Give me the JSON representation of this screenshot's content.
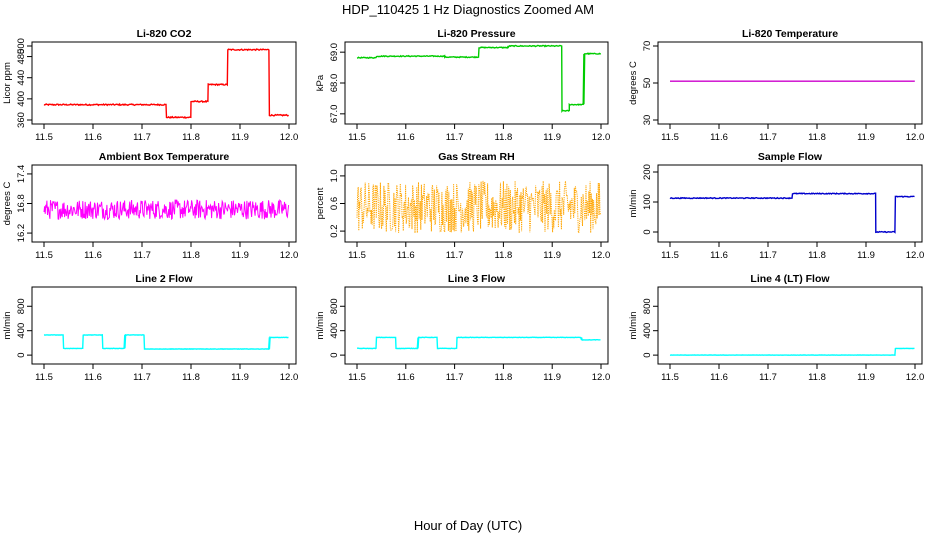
{
  "figure": {
    "title": "HDP_110425  1 Hz Diagnostics Zoomed AM",
    "xlabel": "Hour of Day (UTC)"
  },
  "chart_data": [
    {
      "type": "line",
      "title": "Li-820 CO2",
      "ylabel": "Licor ppm",
      "color": "#ff0000",
      "xlim": [
        11.5,
        12.0
      ],
      "xticks": [
        "11.5",
        "11.6",
        "11.7",
        "11.8",
        "11.9",
        "12.0"
      ],
      "ylim": [
        360,
        500
      ],
      "yticks": [
        "360",
        "400",
        "440",
        "480"
      ],
      "ytick_values": [
        360,
        400,
        440,
        480,
        500
      ],
      "ytick_labels": [
        "360",
        "400",
        "440",
        "480",
        "500"
      ],
      "noise": 1.2,
      "segments": [
        [
          11.5,
          11.75,
          389
        ],
        [
          11.75,
          11.8,
          365
        ],
        [
          11.8,
          11.835,
          395
        ],
        [
          11.835,
          11.875,
          427
        ],
        [
          11.875,
          11.96,
          493
        ],
        [
          11.96,
          12.0,
          369
        ]
      ]
    },
    {
      "type": "line",
      "title": "Li-820 Pressure",
      "ylabel": "kPa",
      "color": "#00cc00",
      "xlim": [
        11.5,
        12.0
      ],
      "ylim": [
        66.8,
        69.2
      ],
      "ytick_values": [
        67.0,
        68.0,
        69.0
      ],
      "ytick_labels": [
        "67.0",
        "68.0",
        "69.0"
      ],
      "noise": 0.015,
      "segments": [
        [
          11.5,
          11.54,
          68.82
        ],
        [
          11.54,
          11.68,
          68.87
        ],
        [
          11.68,
          11.75,
          68.84
        ],
        [
          11.75,
          11.81,
          69.15
        ],
        [
          11.81,
          11.92,
          69.2
        ],
        [
          11.92,
          11.935,
          67.1
        ],
        [
          11.935,
          11.965,
          67.3
        ],
        [
          11.965,
          12.0,
          68.95
        ]
      ]
    },
    {
      "type": "line",
      "title": "Li-820 Temperature",
      "ylabel": "degrees C",
      "color": "#cc00cc",
      "xlim": [
        11.5,
        12.0
      ],
      "ylim": [
        30,
        70
      ],
      "ytick_values": [
        30,
        50,
        70
      ],
      "ytick_labels": [
        "30",
        "50",
        "70"
      ],
      "noise": 0,
      "segments": [
        [
          11.5,
          12.0,
          51
        ]
      ]
    },
    {
      "type": "line",
      "title": "Ambient Box Temperature",
      "ylabel": "degrees C",
      "color": "#ff00ff",
      "xlim": [
        11.5,
        12.0
      ],
      "ylim": [
        16.1,
        17.5
      ],
      "ytick_values": [
        16.2,
        16.8,
        17.4
      ],
      "ytick_labels": [
        "16.2",
        "16.8",
        "17.4"
      ],
      "noise": 0.2,
      "noisy": true,
      "segments": [
        [
          11.5,
          12.0,
          16.68
        ]
      ]
    },
    {
      "type": "line",
      "title": "Gas Stream RH",
      "ylabel": "percent",
      "color": "#ffa500",
      "xlim": [
        11.5,
        12.0
      ],
      "ylim": [
        0.1,
        1.1
      ],
      "ytick_values": [
        0.2,
        0.6,
        1.0
      ],
      "ytick_labels": [
        "0.2",
        "0.6",
        "1.0"
      ],
      "noise": 0.38,
      "noisy": true,
      "dotted": true,
      "segments": [
        [
          11.5,
          12.0,
          0.55
        ]
      ]
    },
    {
      "type": "line",
      "title": "Sample Flow",
      "ylabel": "ml/min",
      "color": "#0000cc",
      "xlim": [
        11.5,
        12.0
      ],
      "ylim": [
        -20,
        210
      ],
      "ytick_values": [
        0,
        100,
        200
      ],
      "ytick_labels": [
        "0",
        "100",
        "200"
      ],
      "noise": 1.5,
      "segments": [
        [
          11.5,
          11.75,
          113
        ],
        [
          11.75,
          11.92,
          128
        ],
        [
          11.92,
          11.96,
          0
        ],
        [
          11.96,
          12.0,
          118
        ]
      ]
    },
    {
      "type": "line",
      "title": "Line 2 Flow",
      "ylabel": "ml/min",
      "color": "#00ffff",
      "xlim": [
        11.5,
        12.0
      ],
      "ylim": [
        -80,
        1050
      ],
      "ytick_values": [
        0,
        400,
        800
      ],
      "ytick_labels": [
        "0",
        "400",
        "800"
      ],
      "noise": 3,
      "segments": [
        [
          11.5,
          11.54,
          330
        ],
        [
          11.54,
          11.58,
          110
        ],
        [
          11.58,
          11.62,
          330
        ],
        [
          11.62,
          11.665,
          110
        ],
        [
          11.665,
          11.705,
          330
        ],
        [
          11.705,
          11.96,
          100
        ],
        [
          11.96,
          12.0,
          290
        ]
      ]
    },
    {
      "type": "line",
      "title": "Line 3 Flow",
      "ylabel": "ml/min",
      "color": "#00ffff",
      "xlim": [
        11.5,
        12.0
      ],
      "ylim": [
        -80,
        1050
      ],
      "ytick_values": [
        0,
        400,
        800
      ],
      "ytick_labels": [
        "0",
        "400",
        "800"
      ],
      "noise": 3,
      "segments": [
        [
          11.5,
          11.54,
          110
        ],
        [
          11.54,
          11.58,
          290
        ],
        [
          11.58,
          11.625,
          110
        ],
        [
          11.625,
          11.665,
          290
        ],
        [
          11.665,
          11.705,
          110
        ],
        [
          11.705,
          11.96,
          290
        ],
        [
          11.96,
          12.0,
          250
        ]
      ]
    },
    {
      "type": "line",
      "title": "Line 4 (LT) Flow",
      "ylabel": "ml/min",
      "color": "#00ffff",
      "xlim": [
        11.5,
        12.0
      ],
      "ylim": [
        -80,
        1050
      ],
      "ytick_values": [
        0,
        400,
        800
      ],
      "ytick_labels": [
        "0",
        "400",
        "800"
      ],
      "noise": 2,
      "segments": [
        [
          11.5,
          11.96,
          0
        ],
        [
          11.96,
          12.0,
          110
        ]
      ]
    }
  ]
}
